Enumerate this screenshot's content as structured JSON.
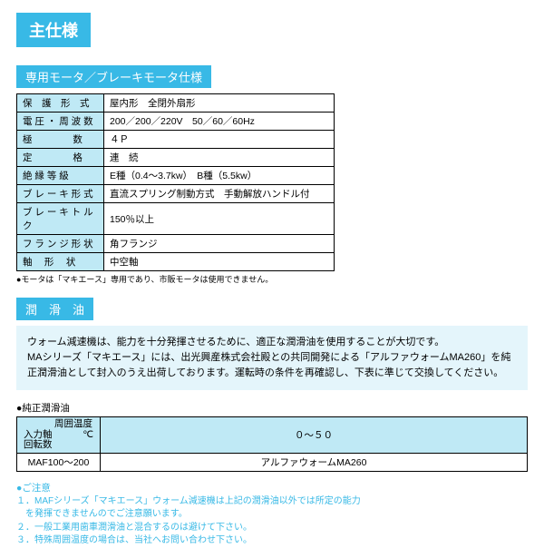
{
  "main_title": "主仕様",
  "motor_section_title": "専用モータ／ブレーキモータ仕様",
  "spec_rows": [
    {
      "label": "保　護　形　式",
      "value": "屋内形　全閉外扇形"
    },
    {
      "label": "電 圧 ・ 周 波 数",
      "value": "200／200／220V　50／60／60Hz"
    },
    {
      "label": "極　　　　 数",
      "value": "４Ｐ"
    },
    {
      "label": "定　　　　 格",
      "value": "連　続"
    },
    {
      "label": "絶 縁 等 級",
      "value": "E種（0.4～3.7kw）　B種（5.5kw）"
    },
    {
      "label": "ブ レ ー キ 形 式",
      "value": "直流スプリング制動方式　手動解放ハンドル付"
    },
    {
      "label": "ブ レ ー キ ト ル ク",
      "value": "150％以上"
    },
    {
      "label": "フ ラ ン ジ 形 状",
      "value": "角フランジ"
    },
    {
      "label": "軸　 形　 状",
      "value": "中空軸"
    }
  ],
  "motor_note": "●モータは「マキエース」専用であり、市販モータは使用できません。",
  "oil_section_title": "潤　滑　油",
  "oil_intro": "ウォーム減速機は、能力を十分発揮させるために、適正な潤滑油を使用することが大切です。\nMAシリーズ「マキエース」には、出光興産株式会社殿との共同開発による「アルファウォームMA260」を純正潤滑油として封入のうえ出荷しております。運転時の条件を再確認し、下表に準じて交換してください。",
  "oil_label": "●純正潤滑油",
  "oil_table": {
    "corner_top": "周囲温度",
    "corner_bottom_left": "入力軸",
    "corner_bottom_right": "℃",
    "corner_rpm": "回転数",
    "temp_range": "０～５０",
    "row_label": "MAF100～200",
    "row_value": "アルファウォームMA260"
  },
  "caution_title": "●ご注意",
  "caution_lines": [
    "１．MAFシリーズ「マキエース」ウォーム減速機は上記の潤滑油以外では所定の能力",
    "を発揮できませんのでご注意願います。",
    "２．一般工業用歯車潤滑油と混合するのは避けて下さい。",
    "３．特殊周囲温度の場合は、当社へお問い合わせ下さい。"
  ]
}
